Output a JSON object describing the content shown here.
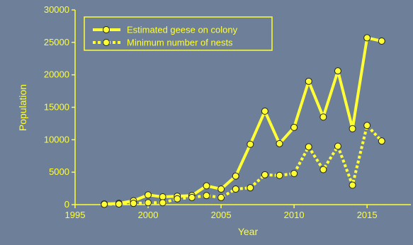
{
  "colors": {
    "background": "#6E7F99",
    "axis": "#FFFF33",
    "series_line": "#FFFF33",
    "marker_fill": "#FFFF33",
    "marker_stroke": "#222222"
  },
  "chart_data": {
    "type": "line",
    "title": "",
    "xlabel": "Year",
    "ylabel": "Population",
    "xlim": [
      1995,
      2018
    ],
    "ylim": [
      0,
      30000
    ],
    "x_ticks": [
      1995,
      2000,
      2005,
      2010,
      2015
    ],
    "y_ticks": [
      0,
      5000,
      10000,
      15000,
      20000,
      25000,
      30000
    ],
    "grid": false,
    "legend_position": "top-left",
    "series": [
      {
        "name": "Estimated geese on colony",
        "line_style": "solid",
        "x": [
          1997,
          1998,
          1999,
          2000,
          2001,
          2002,
          2003,
          2004,
          2005,
          2006,
          2007,
          2008,
          2009,
          2010,
          2011,
          2012,
          2013,
          2014,
          2015,
          2016
        ],
        "y": [
          100,
          200,
          600,
          1500,
          1200,
          1300,
          1400,
          2900,
          2400,
          4400,
          9300,
          14400,
          9400,
          11900,
          19000,
          13500,
          20600,
          11700,
          25700,
          25200
        ]
      },
      {
        "name": "Minimum number of nests",
        "line_style": "dotted",
        "x": [
          1997,
          1998,
          1999,
          2000,
          2001,
          2002,
          2003,
          2004,
          2005,
          2006,
          2007,
          2008,
          2009,
          2010,
          2011,
          2012,
          2013,
          2014,
          2015,
          2016
        ],
        "y": [
          50,
          100,
          200,
          300,
          300,
          900,
          1100,
          1400,
          1100,
          2400,
          2600,
          4600,
          4500,
          4800,
          8900,
          5400,
          9000,
          3000,
          12200,
          9800
        ]
      }
    ]
  }
}
